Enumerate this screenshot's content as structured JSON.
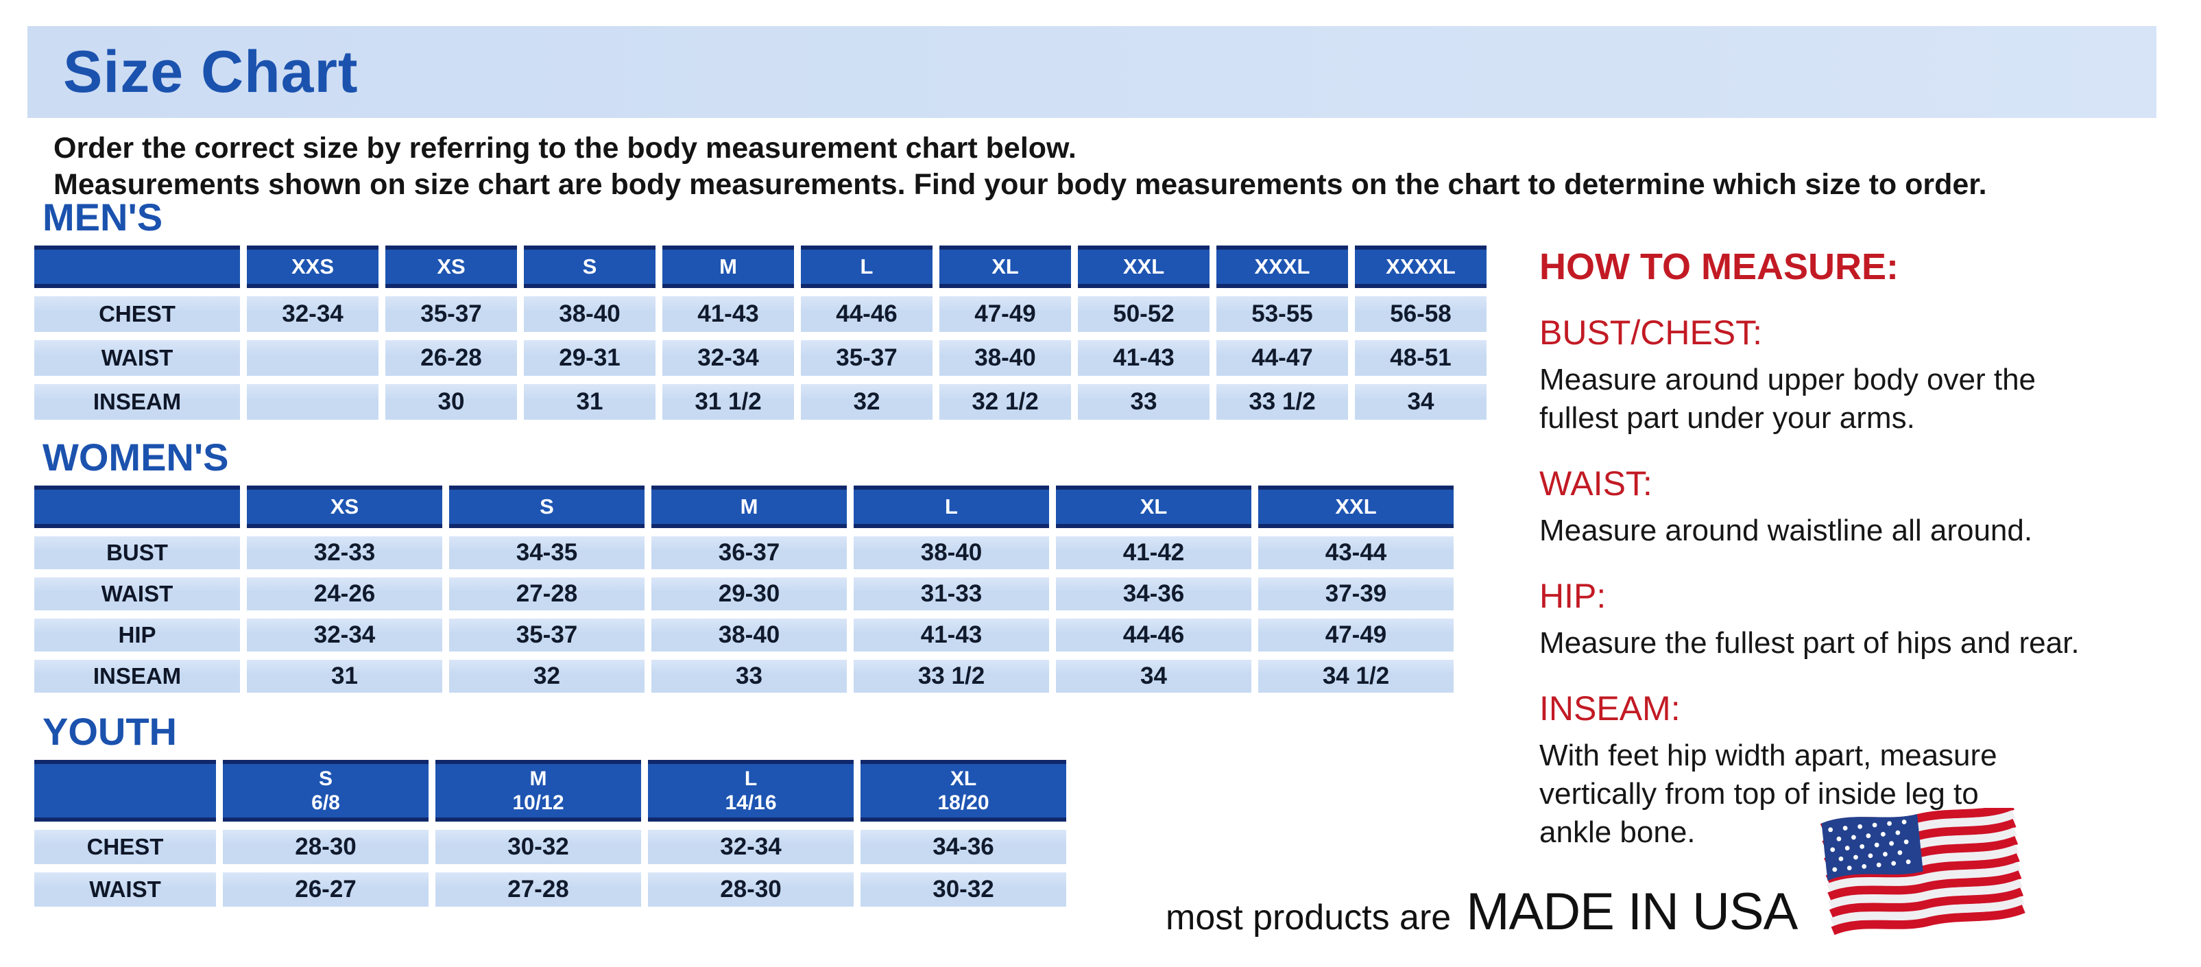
{
  "header": {
    "title": "Size Chart",
    "intro_line1": "Order the correct size by referring to the body measurement chart below.",
    "intro_line2": "Measurements shown on size chart are body measurements.  Find your body measurements on the chart to determine which size to order."
  },
  "tables": {
    "mens": {
      "heading": "MEN'S",
      "columns": [
        "XXS",
        "XS",
        "S",
        "M",
        "L",
        "XL",
        "XXL",
        "XXXL",
        "XXXXL"
      ],
      "rows": [
        {
          "label": "CHEST",
          "values": [
            "32-34",
            "35-37",
            "38-40",
            "41-43",
            "44-46",
            "47-49",
            "50-52",
            "53-55",
            "56-58"
          ]
        },
        {
          "label": "WAIST",
          "values": [
            "",
            "26-28",
            "29-31",
            "32-34",
            "35-37",
            "38-40",
            "41-43",
            "44-47",
            "48-51"
          ]
        },
        {
          "label": "INSEAM",
          "values": [
            "",
            "30",
            "31",
            "31 1/2",
            "32",
            "32 1/2",
            "33",
            "33 1/2",
            "34"
          ]
        }
      ]
    },
    "womens": {
      "heading": "WOMEN'S",
      "columns": [
        "XS",
        "S",
        "M",
        "L",
        "XL",
        "XXL"
      ],
      "rows": [
        {
          "label": "BUST",
          "values": [
            "32-33",
            "34-35",
            "36-37",
            "38-40",
            "41-42",
            "43-44"
          ]
        },
        {
          "label": "WAIST",
          "values": [
            "24-26",
            "27-28",
            "29-30",
            "31-33",
            "34-36",
            "37-39"
          ]
        },
        {
          "label": "HIP",
          "values": [
            "32-34",
            "35-37",
            "38-40",
            "41-43",
            "44-46",
            "47-49"
          ]
        },
        {
          "label": "INSEAM",
          "values": [
            "31",
            "32",
            "33",
            "33 1/2",
            "34",
            "34 1/2"
          ]
        }
      ]
    },
    "youth": {
      "heading": "YOUTH",
      "columns": [
        {
          "size": "S",
          "range": "6/8"
        },
        {
          "size": "M",
          "range": "10/12"
        },
        {
          "size": "L",
          "range": "14/16"
        },
        {
          "size": "XL",
          "range": "18/20"
        }
      ],
      "rows": [
        {
          "label": "CHEST",
          "values": [
            "28-30",
            "30-32",
            "32-34",
            "34-36"
          ]
        },
        {
          "label": "WAIST",
          "values": [
            "26-27",
            "27-28",
            "28-30",
            "30-32"
          ]
        }
      ]
    }
  },
  "how_to_measure": {
    "heading": "HOW TO MEASURE:",
    "items": [
      {
        "label": "BUST/CHEST:",
        "lines": [
          "Measure around upper body over the",
          "fullest part under your arms."
        ]
      },
      {
        "label": "WAIST:",
        "lines": [
          "Measure around waistline all around."
        ]
      },
      {
        "label": "HIP:",
        "lines": [
          "Measure the fullest part of hips and rear."
        ]
      },
      {
        "label": "INSEAM:",
        "lines": [
          "With feet hip width apart, measure",
          "vertically from top of inside leg to",
          "ankle bone."
        ]
      }
    ]
  },
  "footer": {
    "prefix": "most products are",
    "emphasis": "MADE IN USA",
    "flag_icon": "usa-flag"
  },
  "colors": {
    "accent_blue": "#1b52ae",
    "header_cell_blue": "#1e55b2",
    "navy_border": "#10286b",
    "cell_blue": "#c7daf2",
    "banner_blue": "#cfdff4",
    "red": "#c21a24",
    "flag_red": "#cf1126",
    "flag_canton_blue": "#23418e"
  }
}
